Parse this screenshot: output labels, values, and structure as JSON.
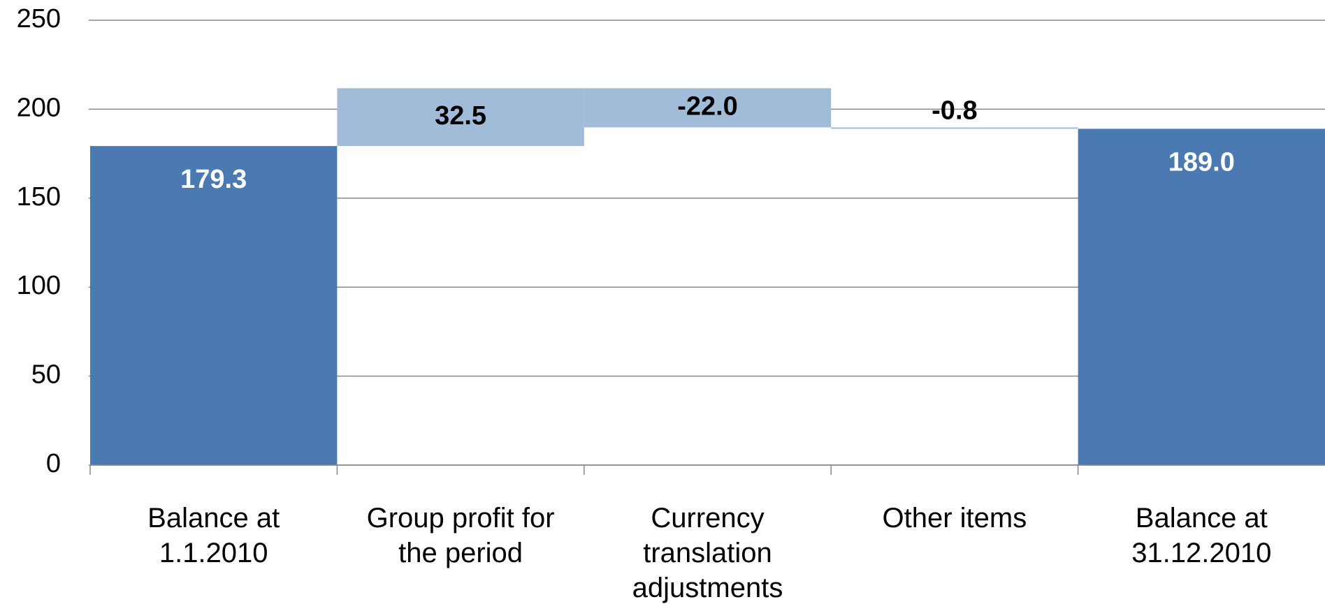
{
  "chart_data": {
    "type": "waterfall",
    "categories": [
      "Balance at 1.1.2010",
      "Group profit for the period",
      "Currency translation adjustments",
      "Other items",
      "Balance at 31.12.2010"
    ],
    "values": [
      179.3,
      32.5,
      -22.0,
      -0.8,
      189.0
    ],
    "value_labels": [
      "179.3",
      "32.5",
      "-22.0",
      "-0.8",
      "189.0"
    ],
    "is_total": [
      true,
      false,
      false,
      false,
      true
    ],
    "total_color": "#4a7ab1",
    "delta_color": "#a1bcd9",
    "ylim": [
      0,
      250
    ],
    "yticks": [
      0,
      50,
      100,
      150,
      200,
      250
    ],
    "grid": true
  }
}
